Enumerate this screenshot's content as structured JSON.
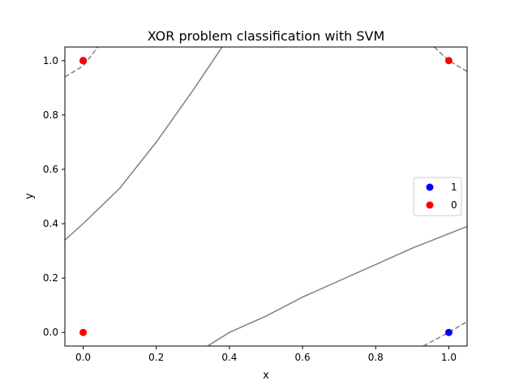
{
  "chart_data": {
    "type": "scatter",
    "title": "XOR problem classification with SVM",
    "xlabel": "x",
    "ylabel": "y",
    "xlim": [
      -0.05,
      1.05
    ],
    "ylim": [
      -0.05,
      1.05
    ],
    "xticks": [
      0.0,
      0.2,
      0.4,
      0.6,
      0.8,
      1.0
    ],
    "yticks": [
      0.0,
      0.2,
      0.4,
      0.6,
      0.8,
      1.0
    ],
    "xtick_labels": [
      "0.0",
      "0.2",
      "0.4",
      "0.6",
      "0.8",
      "1.0"
    ],
    "ytick_labels": [
      "0.0",
      "0.2",
      "0.4",
      "0.6",
      "0.8",
      "1.0"
    ],
    "grid": false,
    "legend_placement": "center-right",
    "series": [
      {
        "name": "1",
        "color": "#0000ff",
        "x": [
          0,
          1
        ],
        "y": [
          1,
          0
        ]
      },
      {
        "name": "0",
        "color": "#ff0000",
        "x": [
          0,
          0,
          1
        ],
        "y": [
          1,
          0,
          1
        ]
      }
    ],
    "decision_curves": [
      {
        "style": "solid",
        "color": "#808080",
        "points": [
          [
            -0.05,
            0.34
          ],
          [
            0.0,
            0.4
          ],
          [
            0.1,
            0.53
          ],
          [
            0.2,
            0.7
          ],
          [
            0.3,
            0.89
          ],
          [
            0.38,
            1.05
          ]
        ]
      },
      {
        "style": "solid",
        "color": "#808080",
        "points": [
          [
            0.34,
            -0.05
          ],
          [
            0.4,
            0.0
          ],
          [
            0.5,
            0.06
          ],
          [
            0.6,
            0.13
          ],
          [
            0.7,
            0.19
          ],
          [
            0.8,
            0.25
          ],
          [
            0.9,
            0.31
          ],
          [
            1.05,
            0.39
          ]
        ]
      },
      {
        "style": "dashed",
        "color": "#808080",
        "points": [
          [
            -0.05,
            0.94
          ],
          [
            0.0,
            0.98
          ],
          [
            0.04,
            1.05
          ]
        ]
      },
      {
        "style": "dashed",
        "color": "#808080",
        "points": [
          [
            0.96,
            1.05
          ],
          [
            1.0,
            1.0
          ],
          [
            1.05,
            0.96
          ]
        ]
      },
      {
        "style": "dashed",
        "color": "#808080",
        "points": [
          [
            0.93,
            -0.05
          ],
          [
            1.0,
            0.0
          ],
          [
            1.05,
            0.04
          ]
        ]
      }
    ]
  }
}
